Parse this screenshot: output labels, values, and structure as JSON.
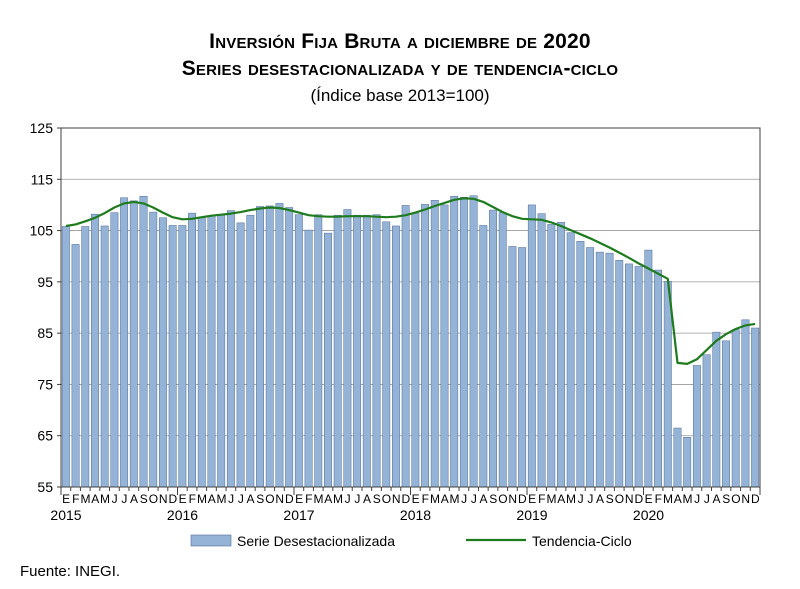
{
  "title_line1": "Inversión Fija Bruta a diciembre de 2020",
  "title_line2": "Series desestacionalizada y de tendencia-ciclo",
  "subtitle": "(Índice base 2013=100)",
  "source": "Fuente: INEGI.",
  "colors": {
    "bar_fill": "#95b3d7",
    "bar_stroke": "#4f6e96",
    "trend": "#1e7b1e",
    "grid": "#999999"
  },
  "chart_data": {
    "type": "bar",
    "ylim": [
      55,
      125
    ],
    "yticks": [
      55,
      65,
      75,
      85,
      95,
      105,
      115,
      125
    ],
    "month_letters": [
      "E",
      "F",
      "M",
      "A",
      "M",
      "J",
      "J",
      "A",
      "S",
      "O",
      "N",
      "D"
    ],
    "years": [
      "2015",
      "2016",
      "2017",
      "2018",
      "2019",
      "2020"
    ],
    "grid": "horizontal",
    "legend_position": "bottom",
    "series": [
      {
        "name": "Serie Desestacionalizada",
        "kind": "bar",
        "values": [
          105.8,
          102.3,
          105.8,
          108.2,
          105.9,
          108.5,
          111.4,
          110.8,
          111.7,
          108.6,
          107.5,
          106.0,
          106.0,
          108.4,
          107.5,
          107.8,
          108.0,
          108.9,
          106.5,
          108.0,
          109.7,
          109.8,
          110.3,
          109.5,
          108.1,
          105.1,
          108.1,
          104.5,
          108.0,
          109.1,
          108.0,
          108.0,
          108.1,
          106.7,
          105.9,
          109.9,
          108.4,
          110.1,
          110.9,
          110.0,
          111.7,
          111.5,
          111.8,
          106.0,
          109.0,
          108.5,
          101.9,
          101.7,
          110.0,
          108.3,
          106.2,
          106.6,
          104.6,
          102.9,
          101.7,
          100.8,
          100.6,
          99.2,
          98.5,
          98.0,
          101.2,
          97.3,
          95.1,
          66.5,
          64.7,
          78.7,
          80.8,
          85.2,
          83.5,
          85.7,
          87.6,
          86.0
        ]
      },
      {
        "name": "Tendencia-Ciclo",
        "kind": "line",
        "values": [
          105.9,
          106.2,
          106.8,
          107.5,
          108.4,
          109.5,
          110.3,
          110.6,
          110.3,
          109.5,
          108.5,
          107.6,
          107.2,
          107.3,
          107.6,
          107.9,
          108.1,
          108.3,
          108.6,
          109.0,
          109.3,
          109.5,
          109.4,
          109.0,
          108.5,
          108.0,
          107.8,
          107.7,
          107.7,
          107.8,
          107.8,
          107.8,
          107.7,
          107.6,
          107.7,
          108.0,
          108.5,
          109.1,
          109.8,
          110.4,
          111.0,
          111.3,
          111.2,
          110.6,
          109.6,
          108.6,
          107.8,
          107.3,
          107.2,
          107.1,
          106.6,
          105.9,
          105.1,
          104.3,
          103.5,
          102.6,
          101.7,
          100.7,
          99.7,
          98.6,
          97.6,
          96.6,
          95.6,
          79.2,
          79.0,
          79.9,
          81.7,
          83.5,
          84.8,
          85.8,
          86.5,
          86.8
        ]
      }
    ]
  }
}
